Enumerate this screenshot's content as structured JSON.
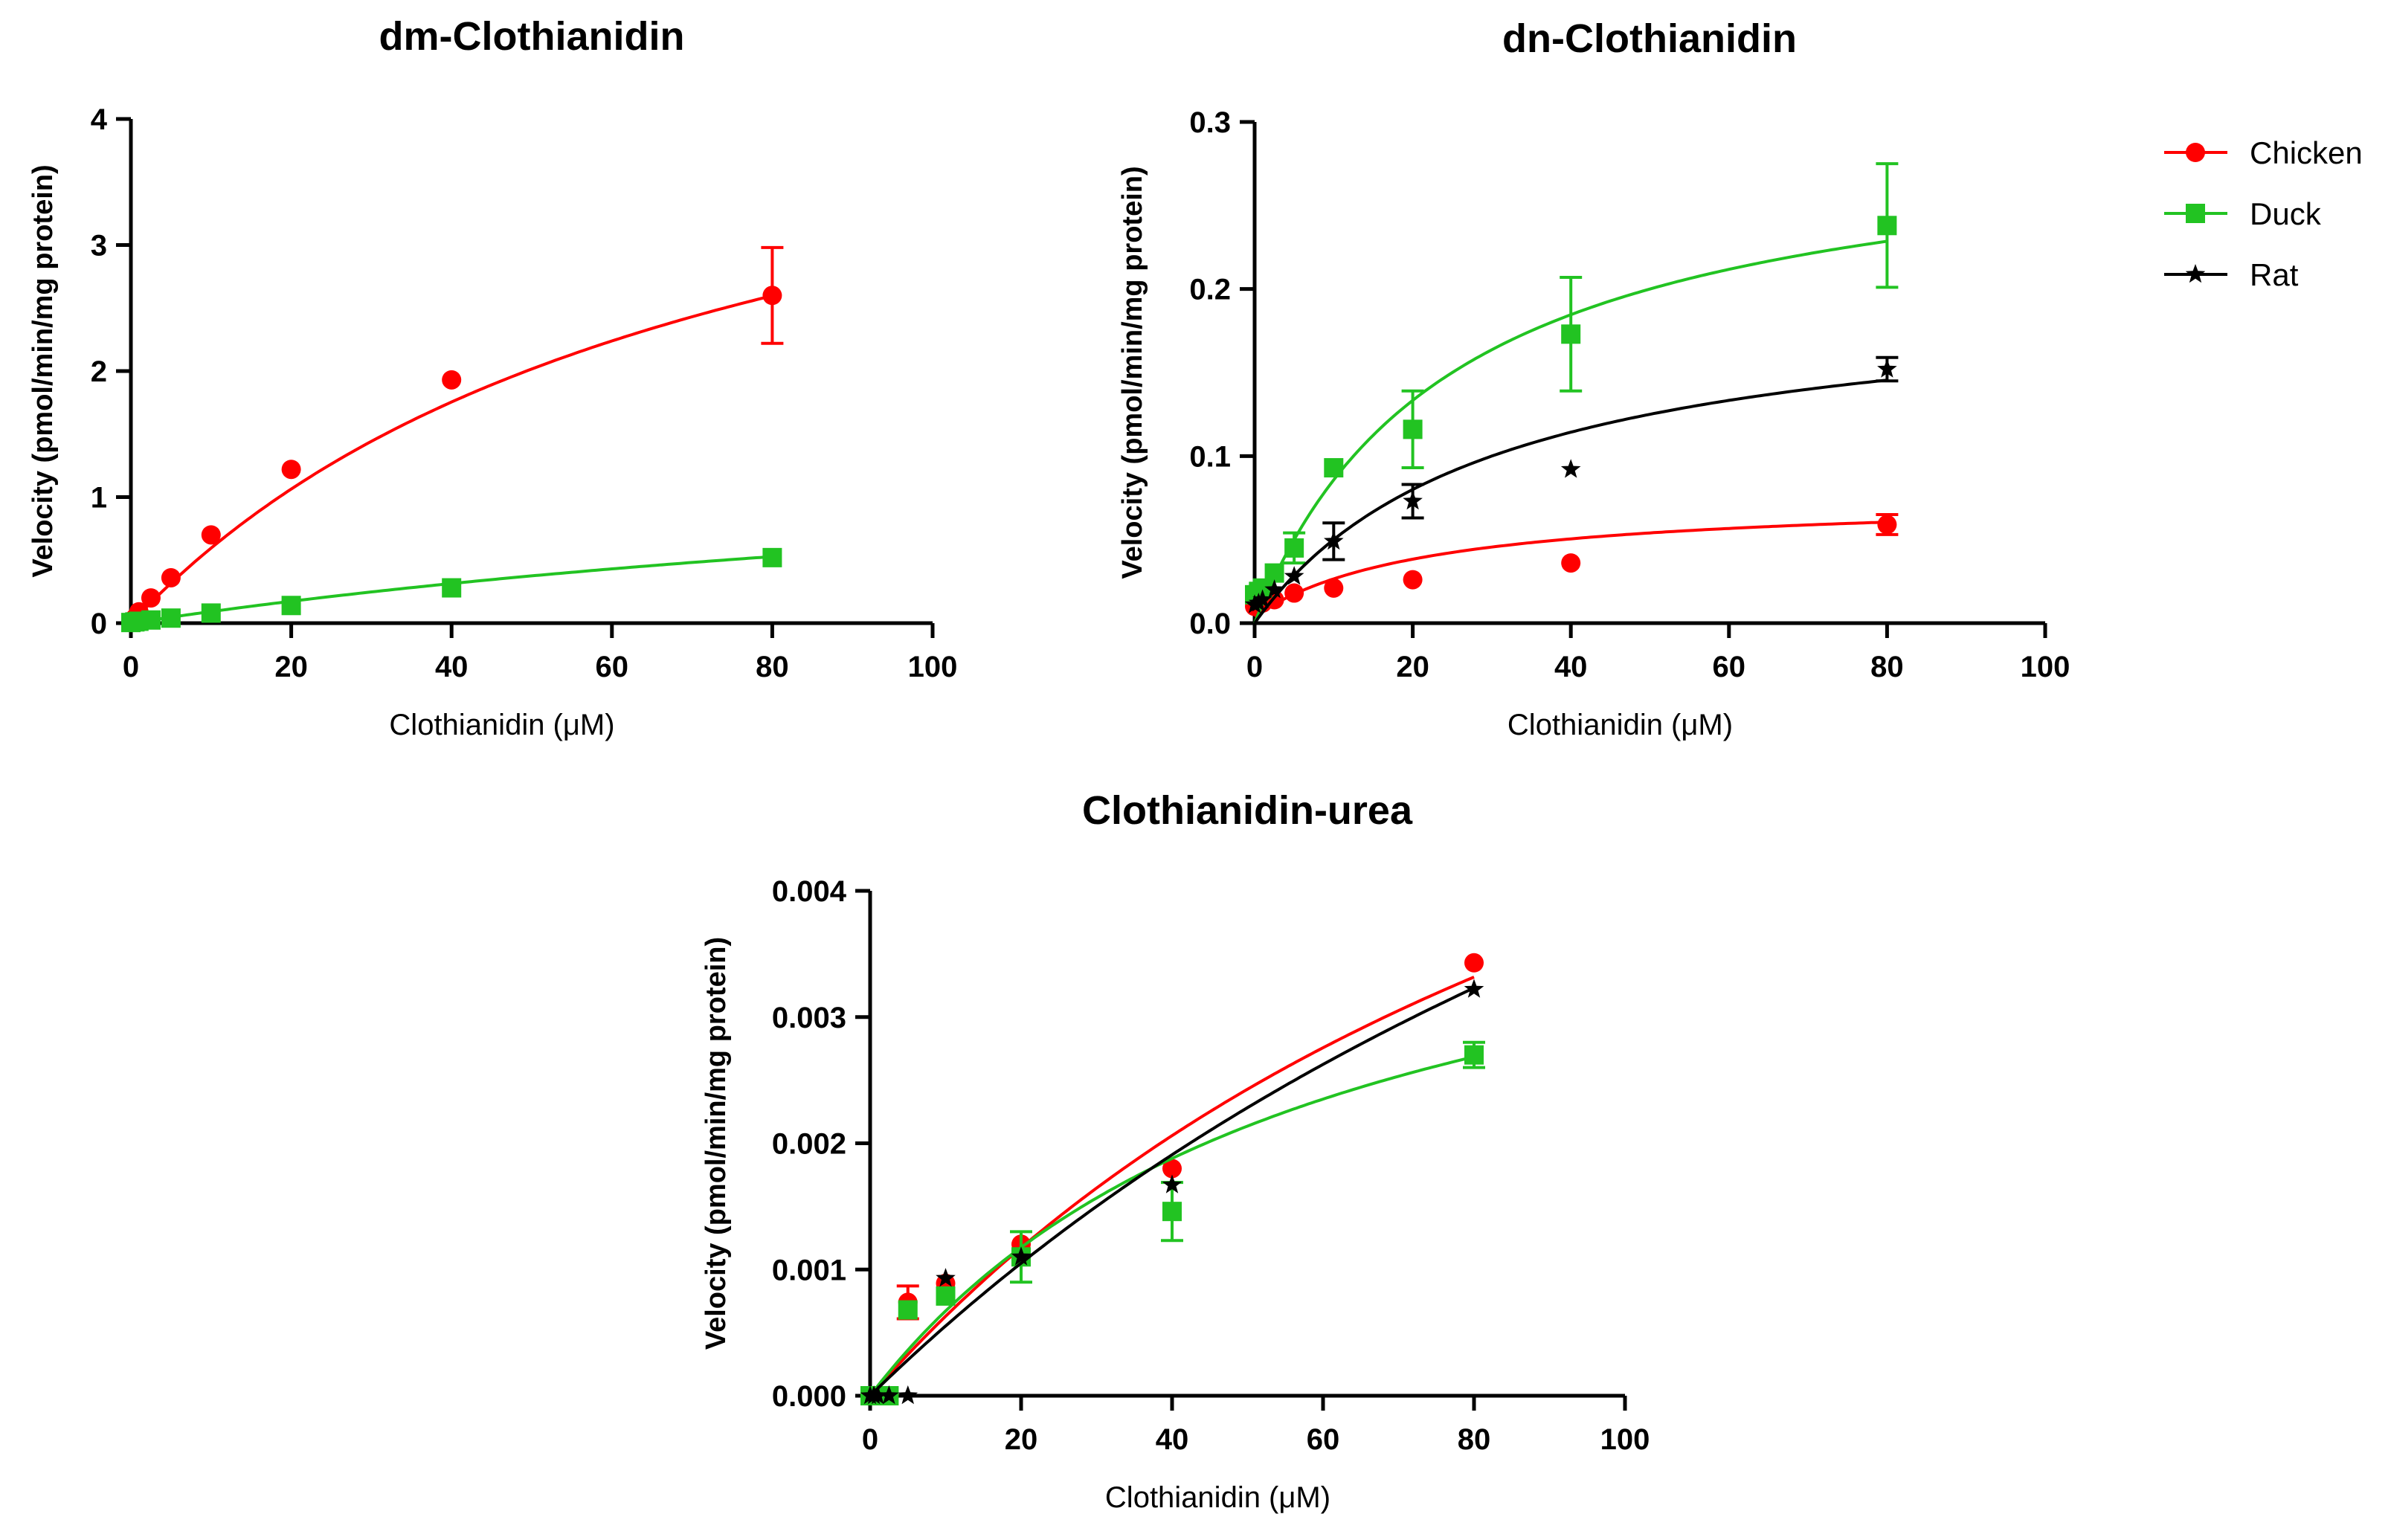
{
  "colors": {
    "Chicken": "#ff0000",
    "Duck": "#22c322",
    "Rat": "#000000"
  },
  "legend": [
    {
      "name": "Chicken",
      "marker": "circle"
    },
    {
      "name": "Duck",
      "marker": "square"
    },
    {
      "name": "Rat",
      "marker": "star"
    }
  ],
  "chart_data": [
    {
      "type": "scatter",
      "title": "dm-Clothianidin",
      "xlabel": "Clothianidin (μM)",
      "ylabel": "Velocity (pmol/min/mg protein)",
      "xlim": [
        0,
        100
      ],
      "ylim": [
        0,
        4
      ],
      "xticks": [
        0,
        20,
        40,
        60,
        80,
        100
      ],
      "yticks": [
        0,
        1,
        2,
        3,
        4
      ],
      "ytick_labels": [
        "0",
        "1",
        "2",
        "3",
        "4"
      ],
      "series": [
        {
          "name": "Chicken",
          "marker": "circle",
          "x": [
            0,
            0.5,
            1,
            2.5,
            5,
            10,
            20,
            40,
            80
          ],
          "y": [
            0.01,
            0.04,
            0.09,
            0.2,
            0.36,
            0.7,
            1.22,
            1.93,
            2.6
          ],
          "err": [
            0,
            0,
            0,
            0,
            0,
            0,
            0,
            0,
            0.38
          ],
          "fit": {
            "vmax": 5.0,
            "km": 74
          }
        },
        {
          "name": "Duck",
          "marker": "square",
          "x": [
            0,
            0.5,
            1,
            2.5,
            5,
            10,
            20,
            40,
            80
          ],
          "y": [
            0.005,
            0.01,
            0.015,
            0.025,
            0.04,
            0.08,
            0.14,
            0.28,
            0.52
          ],
          "err": [
            0,
            0,
            0,
            0,
            0,
            0,
            0,
            0,
            0
          ],
          "fit": {
            "vmax": 1.65,
            "km": 170
          }
        }
      ]
    },
    {
      "type": "scatter",
      "title": "dn-Clothianidin",
      "xlabel": "Clothianidin (μM)",
      "ylabel": "Velocity (pmol/min/mg protein)",
      "xlim": [
        0,
        100
      ],
      "ylim": [
        0,
        0.3
      ],
      "xticks": [
        0,
        20,
        40,
        60,
        80,
        100
      ],
      "yticks": [
        0,
        0.1,
        0.2,
        0.3
      ],
      "ytick_labels": [
        "0.0",
        "0.1",
        "0.2",
        "0.3"
      ],
      "series": [
        {
          "name": "Chicken",
          "marker": "circle",
          "x": [
            0,
            0.5,
            1,
            2.5,
            5,
            10,
            20,
            40,
            80
          ],
          "y": [
            0.01,
            0.011,
            0.012,
            0.014,
            0.018,
            0.021,
            0.026,
            0.036,
            0.059
          ],
          "err": [
            0,
            0,
            0,
            0,
            0,
            0,
            0,
            0,
            0.006
          ],
          "fit": {
            "vmax": 0.072,
            "km": 22,
            "y0": 0.004
          }
        },
        {
          "name": "Duck",
          "marker": "square",
          "x": [
            0,
            0.5,
            1,
            2.5,
            5,
            10,
            20,
            40,
            80
          ],
          "y": [
            0.017,
            0.019,
            0.021,
            0.03,
            0.045,
            0.093,
            0.116,
            0.173,
            0.238
          ],
          "err": [
            0,
            0,
            0,
            0,
            0.009,
            0,
            0.023,
            0.034,
            0.037
          ],
          "fit": {
            "vmax": 0.3,
            "km": 25
          }
        },
        {
          "name": "Rat",
          "marker": "star",
          "x": [
            0,
            0.5,
            1,
            2.5,
            5,
            10,
            20,
            40,
            80
          ],
          "y": [
            0.011,
            0.012,
            0.014,
            0.02,
            0.028,
            0.049,
            0.073,
            0.092,
            0.152
          ],
          "err": [
            0,
            0,
            0,
            0,
            0,
            0.011,
            0.01,
            0,
            0.007
          ],
          "fit": {
            "vmax": 0.2,
            "km": 30
          }
        }
      ]
    },
    {
      "type": "scatter",
      "title": "Clothianidin-urea",
      "xlabel": "Clothianidin (μM)",
      "ylabel": "Velocity (pmol/min/mg protein)",
      "xlim": [
        0,
        100
      ],
      "ylim": [
        0,
        0.004
      ],
      "xticks": [
        0,
        20,
        40,
        60,
        80,
        100
      ],
      "yticks": [
        0,
        0.001,
        0.002,
        0.003,
        0.004
      ],
      "ytick_labels": [
        "0.000",
        "0.001",
        "0.002",
        "0.003",
        "0.004"
      ],
      "series": [
        {
          "name": "Chicken",
          "marker": "circle",
          "x": [
            0,
            0.5,
            1,
            2.5,
            5,
            10,
            20,
            40,
            80
          ],
          "y": [
            0,
            0,
            0,
            0,
            0.00074,
            0.00089,
            0.0012,
            0.0018,
            0.00343
          ],
          "err": [
            0,
            0,
            0,
            0,
            0.00013,
            0,
            0,
            0,
            0
          ],
          "fit": {
            "vmax": 0.0085,
            "km": 125
          }
        },
        {
          "name": "Duck",
          "marker": "square",
          "x": [
            0,
            0.5,
            1,
            2.5,
            5,
            10,
            20,
            40,
            80
          ],
          "y": [
            0,
            0,
            0,
            0,
            0.00068,
            0.00079,
            0.0011,
            0.00146,
            0.0027
          ],
          "err": [
            0,
            0,
            0,
            0,
            0,
            0,
            0.0002,
            0.00023,
            0.0001
          ],
          "fit": {
            "vmax": 0.0047,
            "km": 60
          }
        },
        {
          "name": "Rat",
          "marker": "star",
          "x": [
            0,
            0.5,
            1,
            2.5,
            5,
            10,
            20,
            40,
            80
          ],
          "y": [
            0,
            0,
            0,
            0,
            0,
            0.00093,
            0.0011,
            0.00167,
            0.00322
          ],
          "err": [
            0,
            0,
            0,
            0,
            0,
            0,
            0,
            0,
            0
          ],
          "fit": {
            "vmax": 0.0105,
            "km": 180
          }
        }
      ]
    }
  ]
}
